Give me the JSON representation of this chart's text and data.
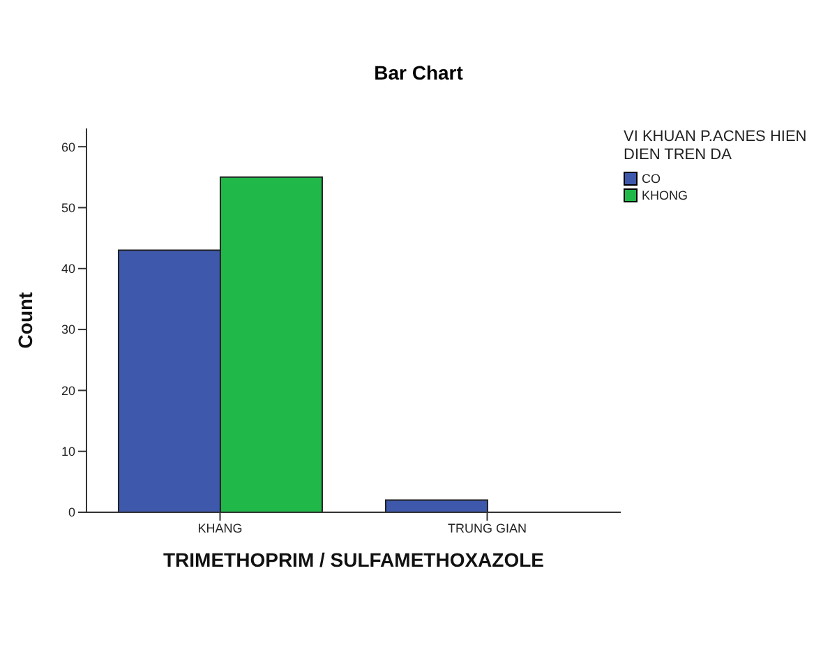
{
  "chart_data": {
    "type": "bar",
    "title": "Bar Chart",
    "xlabel": "TRIMETHOPRIM / SULFAMETHOXAZOLE",
    "ylabel": "Count",
    "legend_title": "VI KHUAN P.ACNES HIEN DIEN TREN DA",
    "categories": [
      "KHANG",
      "TRUNG GIAN"
    ],
    "series": [
      {
        "name": "CO",
        "color": "#3e58ac",
        "values": [
          43,
          2
        ]
      },
      {
        "name": "KHONG",
        "color": "#21b84a",
        "values": [
          55,
          0
        ]
      }
    ],
    "ylim": [
      0,
      63
    ],
    "yticks": [
      0,
      10,
      20,
      30,
      40,
      50,
      60
    ],
    "legend": "right"
  }
}
